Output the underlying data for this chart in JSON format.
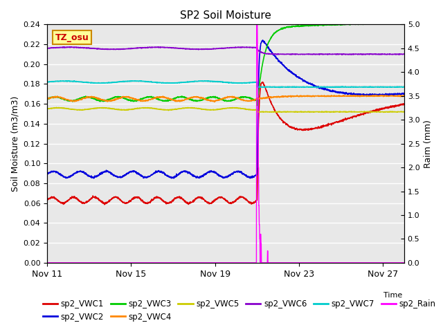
{
  "title": "SP2 Soil Moisture",
  "xlabel": "Time",
  "ylabel_left": "Soil Moisture (m3/m3)",
  "ylabel_right": "Raim (mm)",
  "ylim_left": [
    0.0,
    0.24
  ],
  "ylim_right": [
    0.0,
    5.0
  ],
  "yticks_left": [
    0.0,
    0.02,
    0.04,
    0.06,
    0.08,
    0.1,
    0.12,
    0.14,
    0.16,
    0.18,
    0.2,
    0.22,
    0.24
  ],
  "yticks_right": [
    0.0,
    0.5,
    1.0,
    1.5,
    2.0,
    2.5,
    3.0,
    3.5,
    4.0,
    4.5,
    5.0
  ],
  "xtick_positions": [
    0,
    96,
    192,
    288,
    384
  ],
  "xtick_labels": [
    "Nov 11",
    "Nov 15",
    "Nov 19",
    "Nov 23",
    "Nov 27"
  ],
  "bg_color": "#e8e8e8",
  "annotation_text": "TZ_osu",
  "annotation_color": "#cc0000",
  "annotation_bg": "#ffff99",
  "annotation_border": "#cc8800",
  "series": {
    "sp2_VWC1": {
      "color": "#dd0000",
      "lw": 1.2
    },
    "sp2_VWC2": {
      "color": "#0000dd",
      "lw": 1.2
    },
    "sp2_VWC3": {
      "color": "#00cc00",
      "lw": 1.2
    },
    "sp2_VWC4": {
      "color": "#ff8800",
      "lw": 1.2
    },
    "sp2_VWC5": {
      "color": "#cccc00",
      "lw": 1.2
    },
    "sp2_VWC6": {
      "color": "#8800cc",
      "lw": 1.2
    },
    "sp2_VWC7": {
      "color": "#00cccc",
      "lw": 1.2
    },
    "sp2_Rain": {
      "color": "#ff00ff",
      "lw": 1.0
    }
  },
  "legend_order": [
    "sp2_VWC1",
    "sp2_VWC2",
    "sp2_VWC3",
    "sp2_VWC4",
    "sp2_VWC5",
    "sp2_VWC6",
    "sp2_VWC7",
    "sp2_Rain"
  ]
}
